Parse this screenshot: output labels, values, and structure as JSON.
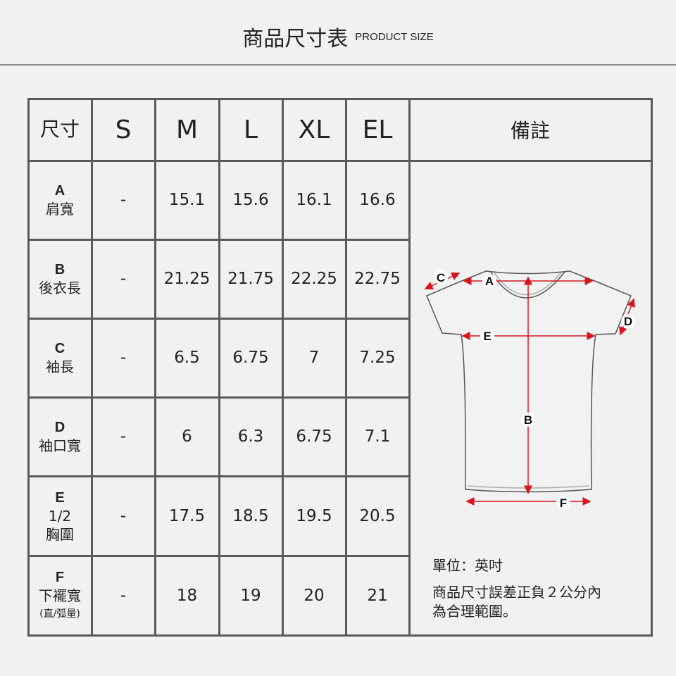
{
  "title": {
    "zh": "商品尺寸表",
    "en": "PRODUCT SIZE"
  },
  "table": {
    "header": [
      "尺寸",
      "S",
      "M",
      "L",
      "XL",
      "EL"
    ],
    "remarks_header": "備註",
    "rows": [
      {
        "code": "A",
        "name": "肩寬",
        "sub": "",
        "note": "",
        "values": [
          "-",
          "15.1",
          "15.6",
          "16.1",
          "16.6"
        ]
      },
      {
        "code": "B",
        "name": "後衣長",
        "sub": "",
        "note": "",
        "values": [
          "-",
          "21.25",
          "21.75",
          "22.25",
          "22.75"
        ]
      },
      {
        "code": "C",
        "name": "袖長",
        "sub": "",
        "note": "",
        "values": [
          "-",
          "6.5",
          "6.75",
          "7",
          "7.25"
        ]
      },
      {
        "code": "D",
        "name": "袖口寬",
        "sub": "",
        "note": "",
        "values": [
          "-",
          "6",
          "6.3",
          "6.75",
          "7.1"
        ]
      },
      {
        "code": "E",
        "name": "胸圍",
        "sub": "1/2",
        "note": "",
        "values": [
          "-",
          "17.5",
          "18.5",
          "19.5",
          "20.5"
        ]
      },
      {
        "code": "F",
        "name": "下襬寬",
        "sub": "",
        "note": "(直/弧量)",
        "values": [
          "-",
          "18",
          "19",
          "20",
          "21"
        ]
      }
    ]
  },
  "diagram": {
    "labels": [
      "A",
      "B",
      "C",
      "D",
      "E",
      "F"
    ],
    "accent": "#d9141f"
  },
  "notes": {
    "unit": "單位：英吋",
    "tolerance_1": "商品尺寸誤差正負２公分內",
    "tolerance_2": "為合理範圍。"
  }
}
